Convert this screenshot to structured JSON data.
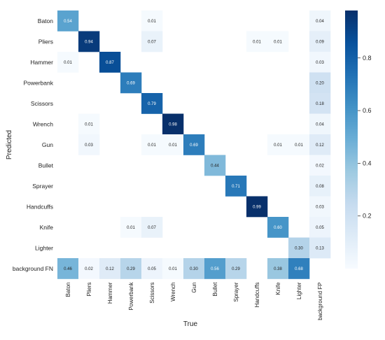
{
  "chart_data": {
    "type": "heatmap",
    "title": "",
    "xlabel": "True",
    "ylabel": "Predicted",
    "x_categories": [
      "Baton",
      "Pliers",
      "Hammer",
      "Powerbank",
      "Scissors",
      "Wrench",
      "Gun",
      "Bullet",
      "Sprayer",
      "Handcuffs",
      "Knife",
      "Lighter",
      "background FP"
    ],
    "y_categories": [
      "Baton",
      "Pliers",
      "Hammer",
      "Powerbank",
      "Scissors",
      "Wrench",
      "Gun",
      "Bullet",
      "Sprayer",
      "Handcuffs",
      "Knife",
      "Lighter",
      "background FN"
    ],
    "values": [
      [
        0.54,
        null,
        null,
        null,
        0.01,
        null,
        null,
        null,
        null,
        null,
        null,
        null,
        0.04
      ],
      [
        null,
        0.94,
        null,
        null,
        0.07,
        null,
        null,
        null,
        null,
        0.01,
        0.01,
        null,
        0.09
      ],
      [
        0.01,
        null,
        0.87,
        null,
        null,
        null,
        null,
        null,
        null,
        null,
        null,
        null,
        0.03
      ],
      [
        null,
        null,
        null,
        0.69,
        null,
        null,
        null,
        null,
        null,
        null,
        null,
        null,
        0.2
      ],
      [
        null,
        null,
        null,
        null,
        0.79,
        null,
        null,
        null,
        null,
        null,
        null,
        null,
        0.18
      ],
      [
        null,
        0.01,
        null,
        null,
        null,
        0.98,
        null,
        null,
        null,
        null,
        null,
        null,
        0.04
      ],
      [
        null,
        0.03,
        null,
        null,
        0.01,
        0.01,
        0.69,
        null,
        null,
        null,
        0.01,
        0.01,
        0.12
      ],
      [
        null,
        null,
        null,
        null,
        null,
        null,
        null,
        0.44,
        null,
        null,
        null,
        null,
        0.02
      ],
      [
        null,
        null,
        null,
        null,
        null,
        null,
        null,
        null,
        0.71,
        null,
        null,
        null,
        0.08
      ],
      [
        null,
        null,
        null,
        null,
        null,
        null,
        null,
        null,
        null,
        0.99,
        null,
        null,
        0.03
      ],
      [
        null,
        null,
        null,
        0.01,
        0.07,
        null,
        null,
        null,
        null,
        null,
        0.6,
        null,
        0.05
      ],
      [
        null,
        null,
        null,
        null,
        null,
        null,
        null,
        null,
        null,
        null,
        null,
        0.3,
        0.13
      ],
      [
        0.46,
        0.02,
        0.12,
        0.29,
        0.05,
        0.01,
        0.3,
        0.56,
        0.29,
        null,
        0.38,
        0.68,
        null
      ]
    ],
    "value_range": [
      0,
      1
    ],
    "colormap": "Blues",
    "colorbar": {
      "ticks": [
        0.2,
        0.4,
        0.6,
        0.8
      ],
      "labels": [
        "0.2",
        "0.4",
        "0.6",
        "0.8"
      ]
    },
    "grid": false
  }
}
